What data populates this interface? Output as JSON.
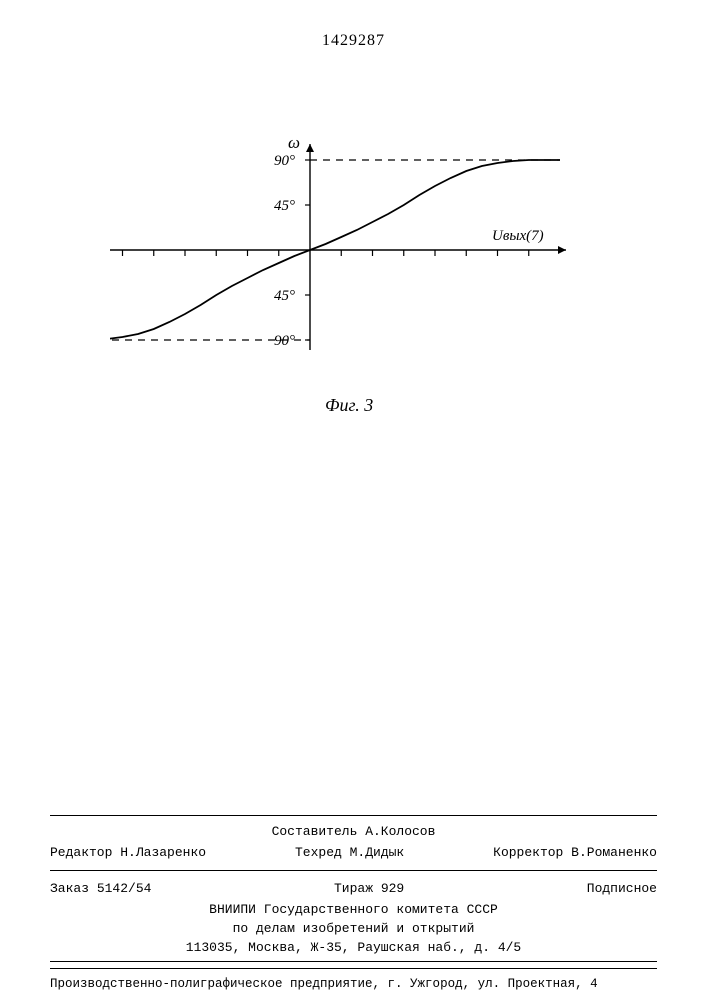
{
  "page_number": "1429287",
  "chart": {
    "type": "line",
    "y_axis_label": "ω",
    "x_axis_label": "Uвых(7)",
    "y_ticks_pos": [
      "90°",
      "45°"
    ],
    "y_ticks_neg": [
      "45°",
      "90°"
    ],
    "caption": "Фиг. 3",
    "curve_color": "#000000",
    "background_color": "#ffffff",
    "line_width": 1.8,
    "dash_color": "#000000",
    "arrow_size": 8,
    "xlim": [
      -8,
      8
    ],
    "ylim": [
      -100,
      100
    ],
    "x_tick_count": 16,
    "y_limit_deg": 90,
    "curve_points": [
      [
        -8,
        -90
      ],
      [
        -7.5,
        -90
      ],
      [
        -7,
        -90
      ],
      [
        -6.5,
        -89
      ],
      [
        -6,
        -87
      ],
      [
        -5.5,
        -84
      ],
      [
        -5,
        -79
      ],
      [
        -4.5,
        -72
      ],
      [
        -4,
        -64
      ],
      [
        -3.5,
        -55
      ],
      [
        -3,
        -45
      ],
      [
        -2.5,
        -36
      ],
      [
        -2,
        -28
      ],
      [
        -1.5,
        -20
      ],
      [
        -1,
        -13
      ],
      [
        -0.5,
        -6
      ],
      [
        0,
        0
      ],
      [
        0.5,
        6
      ],
      [
        1,
        13
      ],
      [
        1.5,
        20
      ],
      [
        2,
        28
      ],
      [
        2.5,
        36
      ],
      [
        3,
        45
      ],
      [
        3.5,
        55
      ],
      [
        4,
        64
      ],
      [
        4.5,
        72
      ],
      [
        5,
        79
      ],
      [
        5.5,
        84
      ],
      [
        6,
        87
      ],
      [
        6.5,
        89
      ],
      [
        7,
        90
      ],
      [
        7.5,
        90
      ],
      [
        8,
        90
      ]
    ]
  },
  "footer": {
    "compiler_label": "Составитель",
    "compiler_name": "А.Колосов",
    "editor_label": "Редактор",
    "editor_name": "Н.Лазаренко",
    "techred_label": "Техред",
    "techred_name": "М.Дидык",
    "corrector_label": "Корректор",
    "corrector_name": "В.Романенко",
    "order_label": "Заказ",
    "order_number": "5142/54",
    "tirage_label": "Тираж",
    "tirage_value": "929",
    "subscription": "Подписное",
    "org1": "ВНИИПИ Государственного комитета СССР",
    "org2": "по делам изобретений и открытий",
    "address": "113035, Москва, Ж-35, Раушская наб., д. 4/5",
    "printer": "Производственно-полиграфическое предприятие, г. Ужгород, ул. Проектная, 4"
  }
}
